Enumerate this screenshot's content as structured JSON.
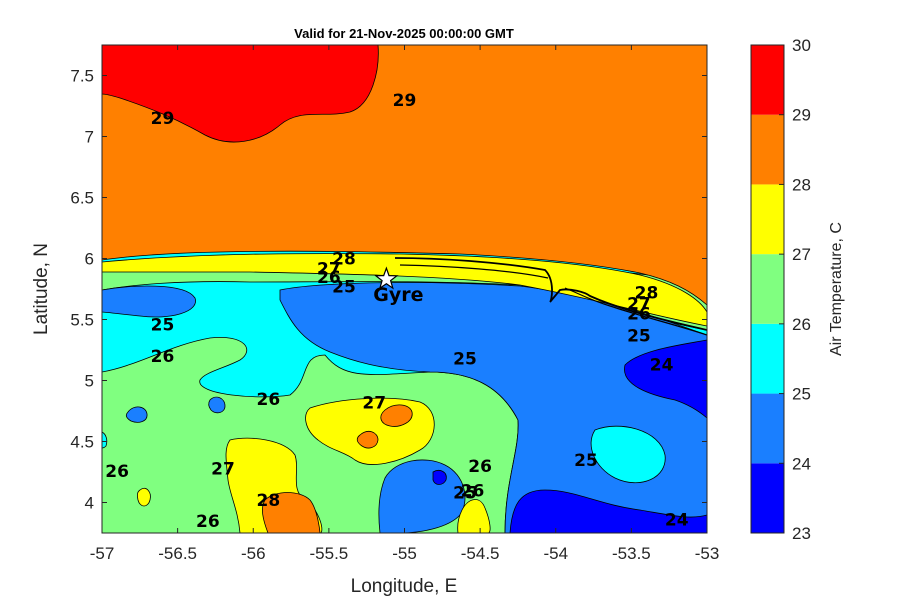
{
  "chart_data": {
    "type": "heatmap",
    "title": "Valid for 21-Nov-2025 00:00:00 GMT",
    "xlabel": "Longitude, E",
    "ylabel": "Latitude, N",
    "xlim": [
      -57,
      -53
    ],
    "ylim": [
      3.75,
      7.75
    ],
    "x_ticks": [
      -57,
      -56.5,
      -56,
      -55.5,
      -55,
      -54.5,
      -54,
      -53.5,
      -53
    ],
    "x_tick_labels": [
      "-57",
      "-56.5",
      "-56",
      "-55.5",
      "-55",
      "-54.5",
      "-54",
      "-53.5",
      "-53"
    ],
    "y_ticks": [
      4,
      4.5,
      5,
      5.5,
      6,
      6.5,
      7,
      7.5
    ],
    "y_tick_labels": [
      "4",
      "4.5",
      "5",
      "5.5",
      "6",
      "6.5",
      "7",
      "7.5"
    ],
    "colorbar": {
      "label": "Air Temperature, C",
      "levels": [
        23,
        24,
        25,
        26,
        27,
        28,
        29,
        30
      ],
      "tick_labels": [
        "23",
        "24",
        "25",
        "26",
        "27",
        "28",
        "29",
        "30"
      ],
      "colors": [
        "#0000ff",
        "#1a7fff",
        "#00ffff",
        "#80ff80",
        "#ffff00",
        "#ff8000",
        "#ff0000",
        "#800000"
      ]
    },
    "contour_labels": [
      {
        "text": "29",
        "lon": -55.0,
        "lat": 7.3
      },
      {
        "text": "29",
        "lon": -56.6,
        "lat": 7.15
      },
      {
        "text": "28",
        "lon": -55.4,
        "lat": 6.0
      },
      {
        "text": "27",
        "lon": -55.5,
        "lat": 5.92
      },
      {
        "text": "26",
        "lon": -55.5,
        "lat": 5.85
      },
      {
        "text": "25",
        "lon": -55.4,
        "lat": 5.77
      },
      {
        "text": "25",
        "lon": -56.6,
        "lat": 5.46
      },
      {
        "text": "26",
        "lon": -56.6,
        "lat": 5.2
      },
      {
        "text": "25",
        "lon": -54.6,
        "lat": 5.18
      },
      {
        "text": "28",
        "lon": -53.4,
        "lat": 5.72
      },
      {
        "text": "27",
        "lon": -53.45,
        "lat": 5.63
      },
      {
        "text": "26",
        "lon": -53.45,
        "lat": 5.55
      },
      {
        "text": "25",
        "lon": -53.45,
        "lat": 5.37
      },
      {
        "text": "24",
        "lon": -53.3,
        "lat": 5.13
      },
      {
        "text": "26",
        "lon": -55.9,
        "lat": 4.85
      },
      {
        "text": "27",
        "lon": -55.2,
        "lat": 4.82
      },
      {
        "text": "26",
        "lon": -56.9,
        "lat": 4.26
      },
      {
        "text": "27",
        "lon": -56.2,
        "lat": 4.28
      },
      {
        "text": "28",
        "lon": -55.9,
        "lat": 4.02
      },
      {
        "text": "26",
        "lon": -56.3,
        "lat": 3.85
      },
      {
        "text": "26",
        "lon": -54.5,
        "lat": 4.3
      },
      {
        "text": "25",
        "lon": -54.6,
        "lat": 4.08
      },
      {
        "text": "26",
        "lon": -54.55,
        "lat": 4.1
      },
      {
        "text": "25",
        "lon": -53.8,
        "lat": 4.35
      },
      {
        "text": "24",
        "lon": -53.2,
        "lat": 3.86
      }
    ],
    "markers": [
      {
        "name": "Gyre",
        "lon": -55.12,
        "lat": 5.83
      }
    ]
  }
}
